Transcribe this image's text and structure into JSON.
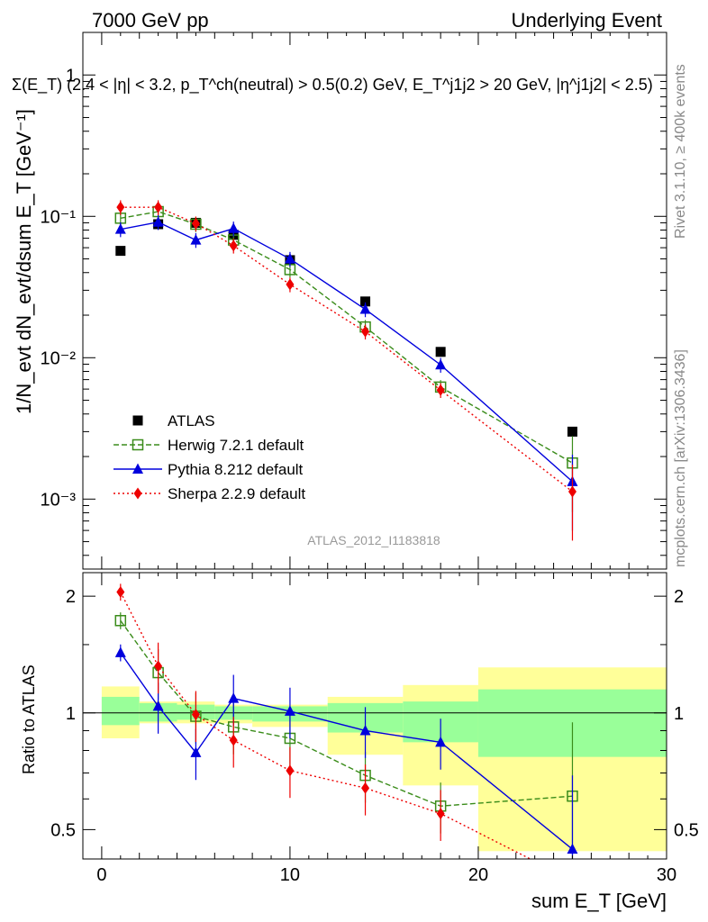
{
  "header": {
    "left": "7000 GeV pp",
    "right": "Underlying Event"
  },
  "side_text": {
    "rivet": "Rivet 3.1.10, ≥ 400k events",
    "mcplots": "mcplots.cern.ch [arXiv:1306.3436]"
  },
  "analysis_id": "ATLAS_2012_I1183818",
  "colors": {
    "atlas": "#000000",
    "herwig": "#3a8c1a",
    "pythia": "#0000dd",
    "sherpa": "#ee0000",
    "band_inner": "#99ff99",
    "band_outer": "#ffff99"
  },
  "chart_data": [
    {
      "type": "line",
      "title": "Σ(E_T) (2.4 < |η| < 3.2, p_T^ch(neutral) > 0.5(0.2) GeV, E_T^j1j2 > 20 GeV, |η^j1j2| < 2.5)",
      "ylabel": "1/N_evt dN_evt/dsum E_T [GeV⁻¹]",
      "yscale": "log",
      "xlim": [
        -1,
        30
      ],
      "ylim": [
        0.00032,
        2.0
      ],
      "ytick_labels": [
        "10⁻³",
        "10⁻²",
        "10⁻¹",
        "1"
      ],
      "legend_position": "middle-left",
      "series": [
        {
          "name": "ATLAS",
          "style": "black filled squares",
          "x": [
            1,
            3,
            5,
            7,
            10,
            14,
            18,
            25
          ],
          "y": [
            0.057,
            0.088,
            0.09,
            0.074,
            0.049,
            0.025,
            0.011,
            0.003
          ]
        },
        {
          "name": "Herwig 7.2.1 default",
          "style": "green open squares, dashed",
          "x": [
            1,
            3,
            5,
            7,
            10,
            14,
            18,
            25
          ],
          "y": [
            0.097,
            0.108,
            0.088,
            0.068,
            0.042,
            0.0165,
            0.0062,
            0.0018
          ]
        },
        {
          "name": "Pythia 8.212 default",
          "style": "blue triangles, solid",
          "x": [
            1,
            3,
            5,
            7,
            10,
            14,
            18,
            25
          ],
          "y": [
            0.081,
            0.091,
            0.068,
            0.082,
            0.05,
            0.022,
            0.0089,
            0.00133
          ]
        },
        {
          "name": "Sherpa 2.2.9 default",
          "style": "red diamonds, dotted",
          "x": [
            1,
            3,
            5,
            7,
            10,
            14,
            18,
            25
          ],
          "y": [
            0.116,
            0.116,
            0.089,
            0.062,
            0.033,
            0.0153,
            0.0059,
            0.00113
          ]
        }
      ]
    },
    {
      "type": "line",
      "xlabel": "sum E_T [GeV]",
      "ylabel": "Ratio to ATLAS",
      "yscale": "log",
      "xlim": [
        -1,
        30
      ],
      "ylim": [
        0.42,
        2.3
      ],
      "xtick_labels": [
        "0",
        "10",
        "20",
        "30"
      ],
      "ytick_labels": [
        "0.5",
        "1",
        "2"
      ],
      "uncertainty_bands": [
        {
          "x0": 0,
          "x1": 2,
          "inner": [
            0.93,
            1.1
          ],
          "outer": [
            0.86,
            1.17
          ]
        },
        {
          "x0": 2,
          "x1": 4,
          "inner": [
            0.95,
            1.06
          ],
          "outer": [
            0.94,
            1.07
          ]
        },
        {
          "x0": 4,
          "x1": 6,
          "inner": [
            0.96,
            1.05
          ],
          "outer": [
            0.94,
            1.07
          ]
        },
        {
          "x0": 6,
          "x1": 8,
          "inner": [
            0.96,
            1.04
          ],
          "outer": [
            0.94,
            1.05
          ]
        },
        {
          "x0": 8,
          "x1": 12,
          "inner": [
            0.95,
            1.04
          ],
          "outer": [
            0.92,
            1.05
          ]
        },
        {
          "x0": 12,
          "x1": 16,
          "inner": [
            0.89,
            1.06
          ],
          "outer": [
            0.78,
            1.1
          ]
        },
        {
          "x0": 16,
          "x1": 20,
          "inner": [
            0.84,
            1.07
          ],
          "outer": [
            0.65,
            1.18
          ]
        },
        {
          "x0": 20,
          "x1": 30,
          "inner": [
            0.77,
            1.15
          ],
          "outer": [
            0.44,
            1.31
          ]
        }
      ],
      "series": [
        {
          "name": "Herwig 7.2.1 default",
          "x": [
            1,
            3,
            5,
            7,
            10,
            14,
            18,
            25
          ],
          "y": [
            1.73,
            1.27,
            0.98,
            0.92,
            0.86,
            0.69,
            0.575,
            0.61
          ]
        },
        {
          "name": "Pythia 8.212 default",
          "x": [
            1,
            3,
            5,
            7,
            10,
            14,
            18,
            25
          ],
          "y": [
            1.43,
            1.04,
            0.79,
            1.09,
            1.01,
            0.9,
            0.84,
            0.445
          ]
        },
        {
          "name": "Sherpa 2.2.9 default",
          "x": [
            1,
            3,
            5,
            7,
            10,
            14,
            18,
            25
          ],
          "y": [
            2.05,
            1.32,
            0.99,
            0.85,
            0.71,
            0.64,
            0.55,
            0.37
          ]
        }
      ]
    }
  ]
}
